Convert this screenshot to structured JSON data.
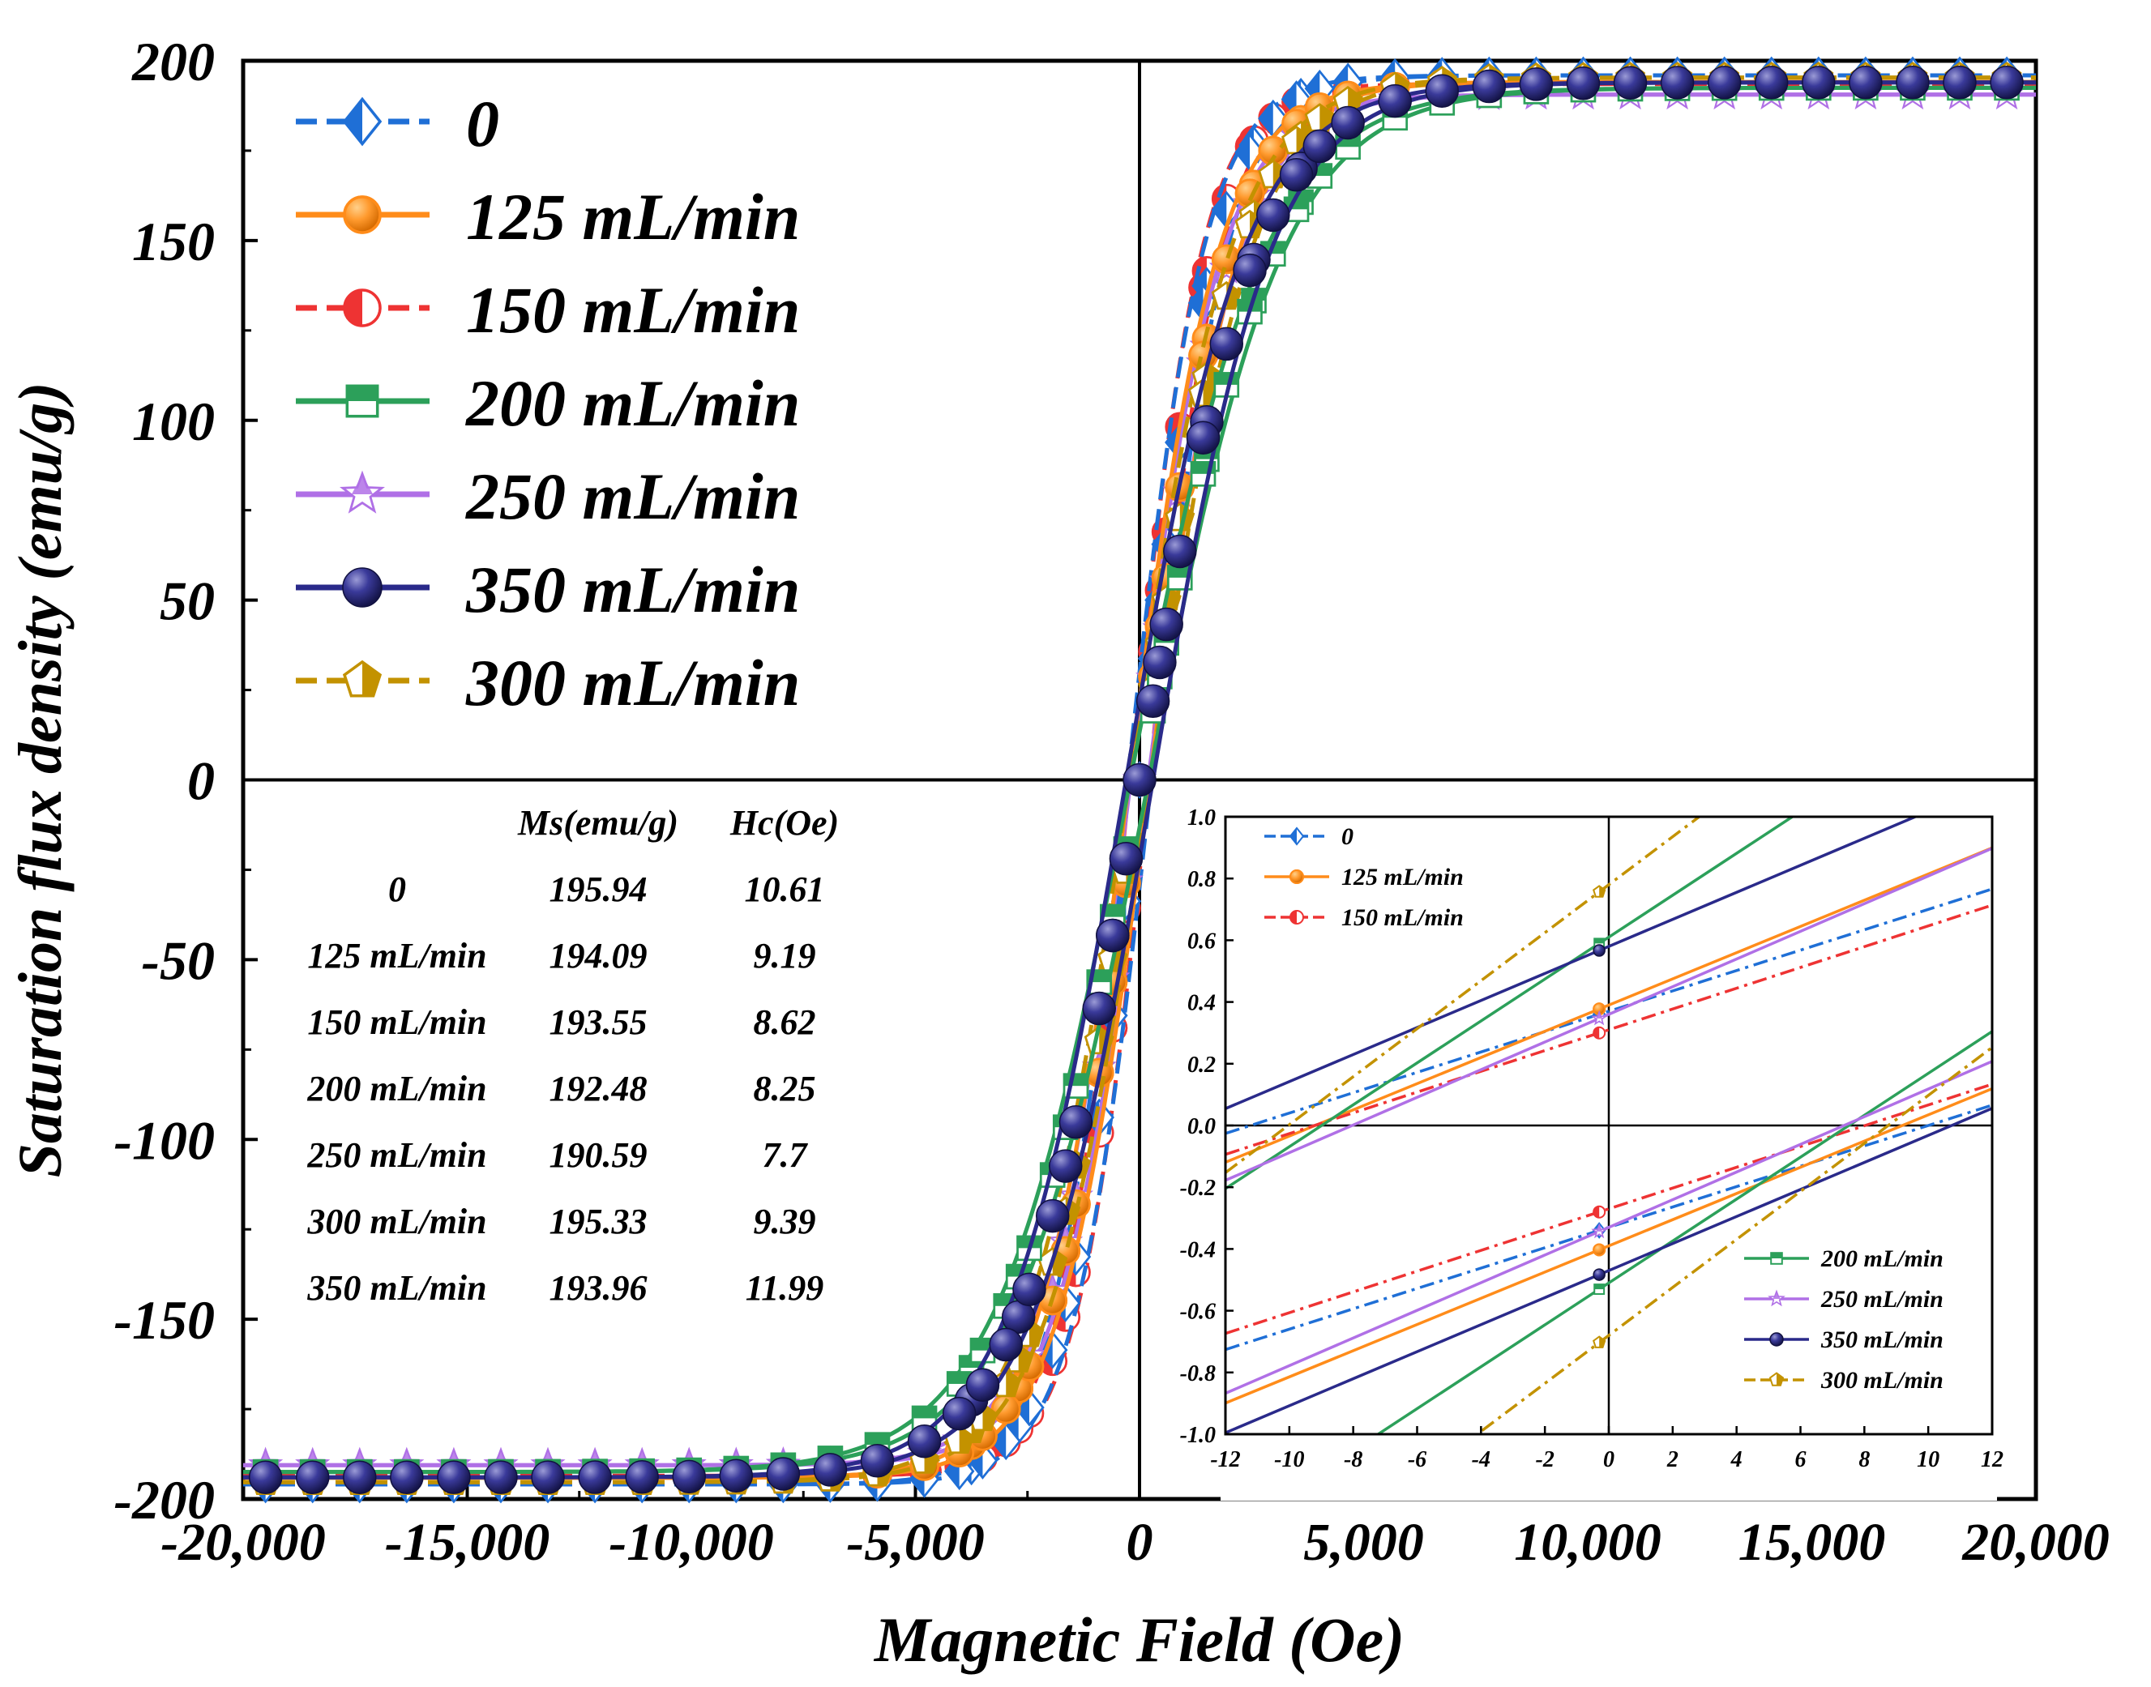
{
  "chart_data": {
    "type": "line",
    "xlabel": "Magnetic Field (Oe)",
    "ylabel": "Saturation flux  density (emu/g)",
    "xlim": [
      -20000,
      20000
    ],
    "ylim": [
      -200,
      200
    ],
    "x_ticks": [
      "-20,000",
      "-15,000",
      "-10,000",
      "-5,000",
      "0",
      "5,000",
      "10,000",
      "15,000",
      "20,000"
    ],
    "x_tick_values": [
      -20000,
      -15000,
      -10000,
      -5000,
      0,
      5000,
      10000,
      15000,
      20000
    ],
    "y_ticks": [
      "200",
      "150",
      "100",
      "50",
      "0",
      "-50",
      "-100",
      "-150",
      "-200"
    ],
    "y_tick_values": [
      200,
      150,
      100,
      50,
      0,
      -50,
      -100,
      -150,
      -200
    ],
    "legend_position": "top-left",
    "series": [
      {
        "name": "0",
        "color": "#1f6fd6",
        "marker": "half-diamond",
        "dashed": true,
        "Ms": 195.94,
        "Hc": 10.61,
        "slope": 1500
      },
      {
        "name": "125 mL/min",
        "color": "#ff8c1a",
        "marker": "half-circle",
        "dashed": false,
        "Ms": 194.09,
        "Hc": 9.19,
        "slope": 1750
      },
      {
        "name": "150 mL/min",
        "color": "#ee3333",
        "marker": "half-circle",
        "dashed": true,
        "Ms": 193.55,
        "Hc": 8.62,
        "slope": 1400
      },
      {
        "name": "200 mL/min",
        "color": "#2ca05a",
        "marker": "half-square",
        "dashed": false,
        "Ms": 192.48,
        "Hc": 8.25,
        "slope": 2600
      },
      {
        "name": "250 mL/min",
        "color": "#b070e6",
        "marker": "half-star",
        "dashed": false,
        "Ms": 190.59,
        "Hc": 7.7,
        "slope": 1750
      },
      {
        "name": "350 mL/min",
        "color": "#2a2a8a",
        "marker": "ball",
        "dashed": false,
        "Ms": 193.96,
        "Hc": 11.99,
        "slope": 2300
      },
      {
        "name": "300 mL/min",
        "color": "#c39200",
        "marker": "half-pentagon",
        "dashed": true,
        "Ms": 195.33,
        "Hc": 9.39,
        "slope": 2000
      }
    ],
    "table": {
      "headers": [
        "",
        "Ms(emu/g)",
        "Hc(Oe)"
      ],
      "rows": [
        [
          "0",
          "195.94",
          "10.61"
        ],
        [
          "125 mL/min",
          "194.09",
          "9.19"
        ],
        [
          "150 mL/min",
          "193.55",
          "8.62"
        ],
        [
          "200 mL/min",
          "192.48",
          "8.25"
        ],
        [
          "250 mL/min",
          "190.59",
          "7.7"
        ],
        [
          "300 mL/min",
          "195.33",
          "9.39"
        ],
        [
          "350 mL/min",
          "193.96",
          "11.99"
        ]
      ]
    },
    "inset": {
      "type": "line",
      "xlim": [
        -12,
        12
      ],
      "ylim": [
        -1.0,
        1.0
      ],
      "x_ticks": [
        "-12",
        "-10",
        "-8",
        "-6",
        "-4",
        "-2",
        "0",
        "2",
        "4",
        "6",
        "8",
        "10",
        "12"
      ],
      "x_tick_values": [
        -12,
        -10,
        -8,
        -6,
        -4,
        -2,
        0,
        2,
        4,
        6,
        8,
        10,
        12
      ],
      "y_ticks": [
        "1.0",
        "0.8",
        "0.6",
        "0.4",
        "0.2",
        "0.0",
        "-0.2",
        "-0.4",
        "-0.6",
        "-0.8",
        "-1.0"
      ],
      "y_tick_values": [
        1.0,
        0.8,
        0.6,
        0.4,
        0.2,
        0.0,
        -0.2,
        -0.4,
        -0.6,
        -0.8,
        -1.0
      ],
      "legend_top_left": [
        "0",
        "125 mL/min",
        "150 mL/min"
      ],
      "legend_bottom_right": [
        "200 mL/min",
        "250 mL/min",
        "350 mL/min",
        "300 mL/min"
      ],
      "lines": [
        {
          "name": "0",
          "color": "#1f6fd6",
          "dashed": true,
          "upper_intercept": 0.37,
          "lower_intercept": -0.33
        },
        {
          "name": "125 mL/min",
          "color": "#ff8c1a",
          "dashed": false,
          "upper_intercept": 0.39,
          "lower_intercept": -0.39
        },
        {
          "name": "150 mL/min",
          "color": "#ee3333",
          "dashed": true,
          "upper_intercept": 0.31,
          "lower_intercept": -0.27
        },
        {
          "name": "200 mL/min",
          "color": "#2ca05a",
          "dashed": false,
          "upper_intercept": 0.61,
          "lower_intercept": -0.51
        },
        {
          "name": "250 mL/min",
          "color": "#b070e6",
          "dashed": false,
          "upper_intercept": 0.36,
          "lower_intercept": -0.33
        },
        {
          "name": "350 mL/min",
          "color": "#2a2a8a",
          "dashed": false,
          "upper_intercept": 0.58,
          "lower_intercept": -0.47
        },
        {
          "name": "300 mL/min",
          "color": "#c39200",
          "dashed": true,
          "upper_intercept": 0.78,
          "lower_intercept": -0.68
        }
      ]
    }
  }
}
